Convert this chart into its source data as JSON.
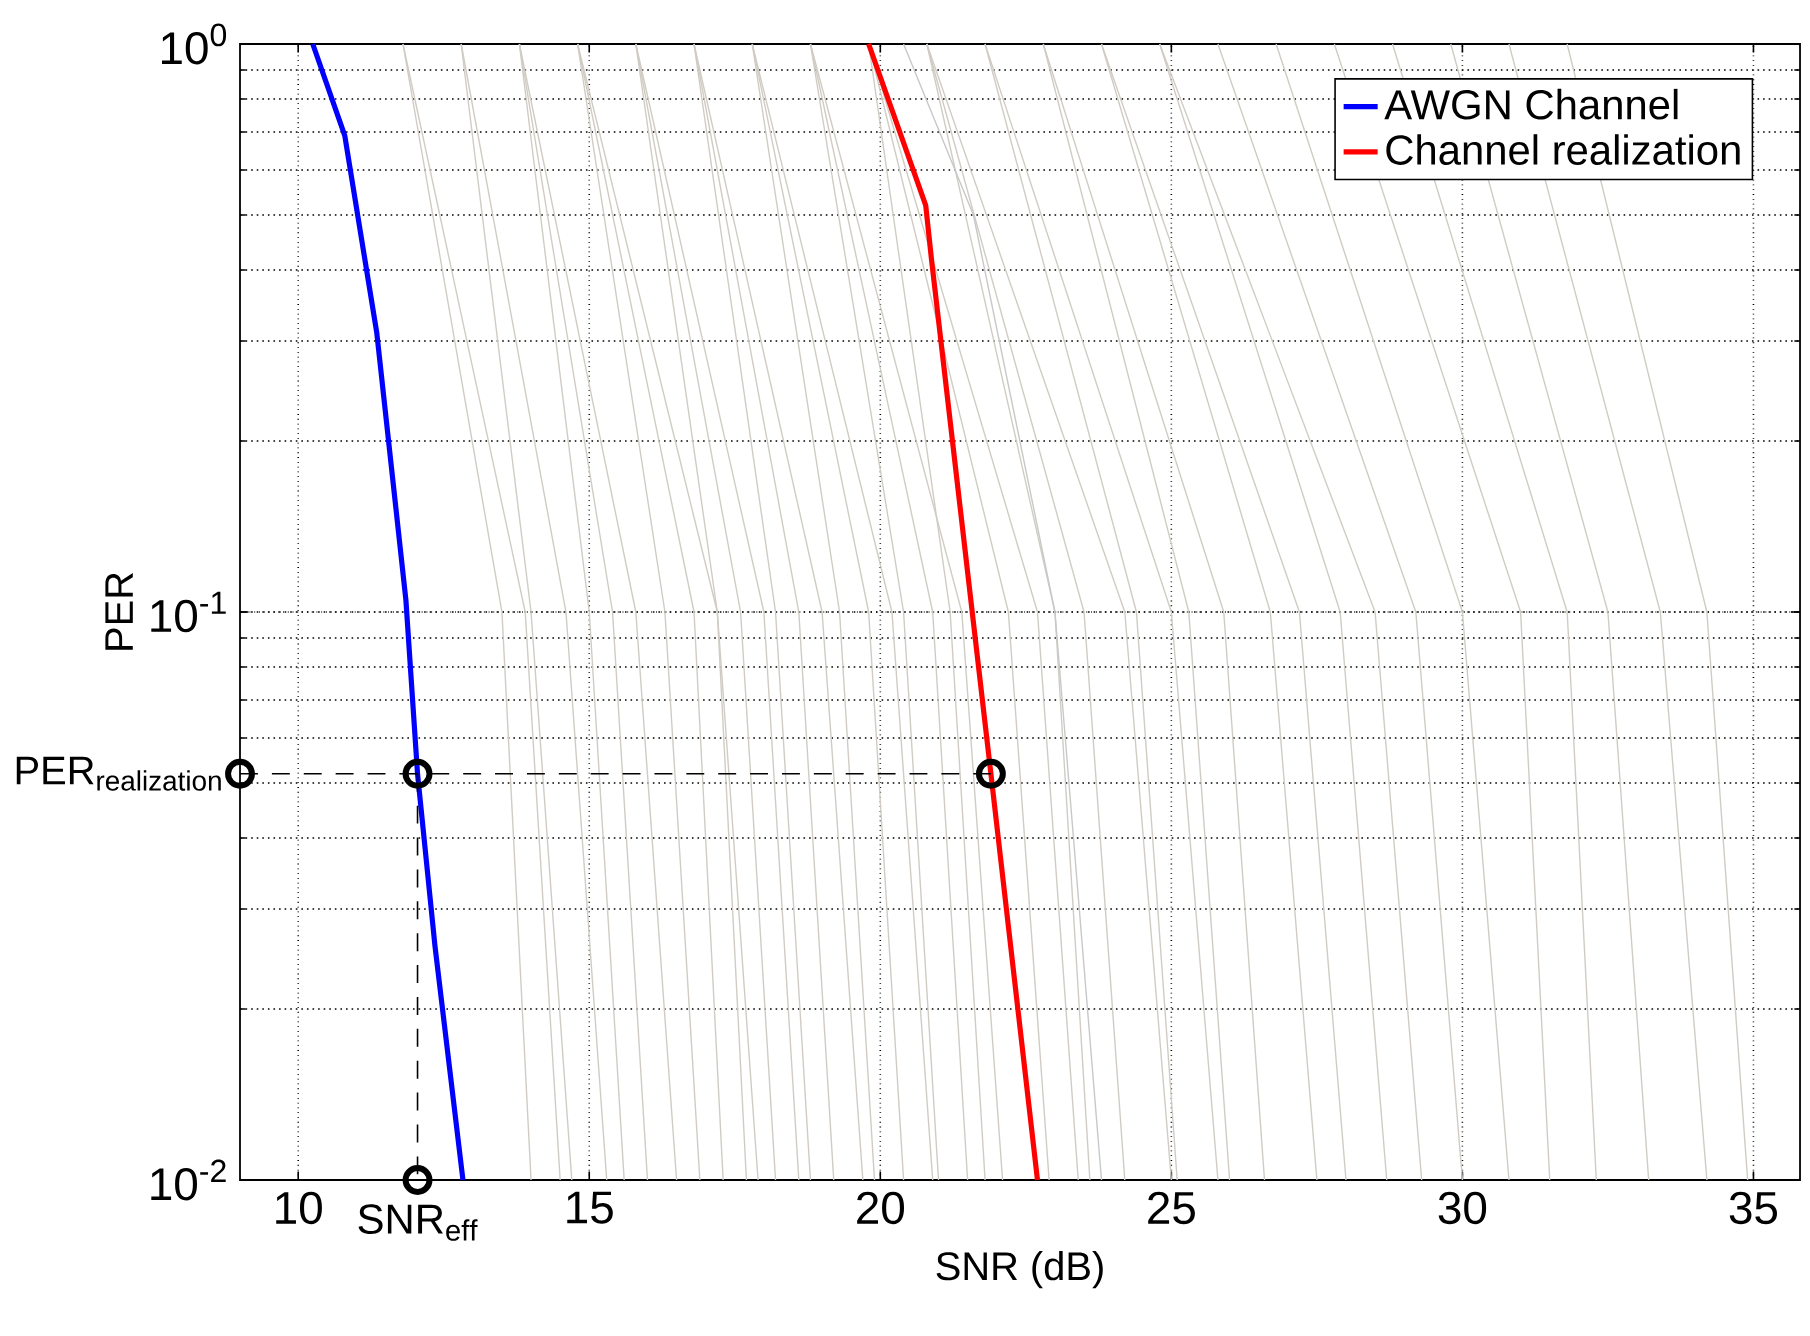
{
  "chart_data": {
    "type": "line",
    "xlabel": "SNR (dB)",
    "ylabel": "PER",
    "log": "y",
    "grid": true,
    "legend": "top right",
    "xlim": [
      9,
      35.8
    ],
    "ylim": [
      0.01,
      1
    ],
    "xticks": [
      10,
      15,
      20,
      25,
      30,
      35
    ],
    "yticks": [
      {
        "value": 0.01,
        "label": "10$^{-2}$"
      },
      {
        "value": 0.1,
        "label": "10$^{-1}$"
      },
      {
        "value": 1,
        "label": "10$^{0}$"
      }
    ],
    "series": [
      {
        "color": "#d0ccc4",
        "x": [
          11.8,
          13.5,
          14.0
        ],
        "values": [
          1,
          0.1,
          0.01
        ]
      },
      {
        "color": "#d0ccc4",
        "x": [
          11.8,
          13.9,
          14.5
        ],
        "values": [
          1,
          0.1,
          0.01
        ]
      },
      {
        "color": "#d0ccc4",
        "x": [
          12.8,
          14.0,
          14.7
        ],
        "values": [
          1,
          0.1,
          0.01
        ]
      },
      {
        "color": "#d0ccc4",
        "x": [
          12.8,
          14.6,
          15.3
        ],
        "values": [
          1,
          0.1,
          0.01
        ]
      },
      {
        "color": "#d0ccc4",
        "x": [
          13.8,
          15.0,
          15.6
        ],
        "values": [
          1,
          0.1,
          0.01
        ]
      },
      {
        "color": "#d0ccc4",
        "x": [
          13.8,
          15.4,
          16.0
        ],
        "values": [
          1,
          0.1,
          0.01
        ]
      },
      {
        "color": "#d0ccc4",
        "x": [
          13.8,
          15.8,
          16.5
        ],
        "values": [
          1,
          0.1,
          0.01
        ]
      },
      {
        "color": "#d0ccc4",
        "x": [
          14.8,
          16.3,
          16.9
        ],
        "values": [
          1,
          0.1,
          0.01
        ]
      },
      {
        "color": "#d0ccc4",
        "x": [
          14.8,
          16.8,
          17.3
        ],
        "values": [
          1,
          0.1,
          0.01
        ]
      },
      {
        "color": "#d0ccc4",
        "x": [
          14.8,
          17.2,
          17.9
        ],
        "values": [
          1,
          0.1,
          0.01
        ]
      },
      {
        "color": "#d0ccc4",
        "x": [
          15.8,
          17.2,
          17.7
        ],
        "values": [
          1,
          0.1,
          0.01
        ]
      },
      {
        "color": "#d0ccc4",
        "x": [
          15.8,
          17.6,
          18.2
        ],
        "values": [
          1,
          0.1,
          0.01
        ]
      },
      {
        "color": "#d0ccc4",
        "x": [
          15.8,
          18.0,
          18.6
        ],
        "values": [
          1,
          0.1,
          0.01
        ]
      },
      {
        "color": "#d0ccc4",
        "x": [
          16.8,
          18.2,
          18.8
        ],
        "values": [
          1,
          0.1,
          0.01
        ]
      },
      {
        "color": "#d0ccc4",
        "x": [
          16.8,
          18.6,
          19.2
        ],
        "values": [
          1,
          0.1,
          0.01
        ]
      },
      {
        "color": "#d0ccc4",
        "x": [
          16.8,
          19.0,
          19.7
        ],
        "values": [
          1,
          0.1,
          0.01
        ]
      },
      {
        "color": "#d0ccc4",
        "x": [
          17.8,
          19.3,
          19.9
        ],
        "values": [
          1,
          0.1,
          0.01
        ]
      },
      {
        "color": "#d0ccc4",
        "x": [
          17.8,
          19.8,
          20.4
        ],
        "values": [
          1,
          0.1,
          0.01
        ]
      },
      {
        "color": "#d0ccc4",
        "x": [
          17.8,
          20.2,
          20.9
        ],
        "values": [
          1,
          0.1,
          0.01
        ]
      },
      {
        "color": "#d0ccc4",
        "x": [
          18.8,
          20.4,
          21.0
        ],
        "values": [
          1,
          0.1,
          0.01
        ]
      },
      {
        "color": "#d0ccc4",
        "x": [
          18.8,
          20.9,
          21.5
        ],
        "values": [
          1,
          0.1,
          0.01
        ]
      },
      {
        "color": "#d0ccc4",
        "x": [
          18.8,
          21.4,
          22.1
        ],
        "values": [
          1,
          0.1,
          0.01
        ]
      },
      {
        "color": "#d0ccc4",
        "x": [
          19.8,
          21.2,
          21.8
        ],
        "values": [
          1,
          0.1,
          0.01
        ]
      },
      {
        "color": "#d0ccc4",
        "x": [
          19.8,
          22.2,
          22.9
        ],
        "values": [
          1,
          0.1,
          0.01
        ]
      },
      {
        "color": "#d0ccc4",
        "x": [
          19.8,
          22.7,
          23.4
        ],
        "values": [
          1,
          0.1,
          0.01
        ]
      },
      {
        "color": "#d0ccc4",
        "x": [
          20.8,
          23.0,
          23.6
        ],
        "values": [
          1,
          0.1,
          0.01
        ]
      },
      {
        "color": "#d0ccc4",
        "x": [
          20.8,
          23.5,
          24.2
        ],
        "values": [
          1,
          0.1,
          0.01
        ]
      },
      {
        "color": "#d0ccc4",
        "x": [
          20.8,
          24.2,
          25.0
        ],
        "values": [
          1,
          0.1,
          0.01
        ]
      },
      {
        "color": "#d0ccc4",
        "x": [
          21.8,
          24.4,
          25.1
        ],
        "values": [
          1,
          0.1,
          0.01
        ]
      },
      {
        "color": "#d0ccc4",
        "x": [
          21.8,
          25.0,
          25.8
        ],
        "values": [
          1,
          0.1,
          0.01
        ]
      },
      {
        "color": "#d0ccc4",
        "x": [
          22.8,
          25.3,
          26.0
        ],
        "values": [
          1,
          0.1,
          0.01
        ]
      },
      {
        "color": "#d0ccc4",
        "x": [
          22.8,
          25.9,
          26.6
        ],
        "values": [
          1,
          0.1,
          0.01
        ]
      },
      {
        "color": "#d0ccc4",
        "x": [
          23.8,
          26.7,
          27.5
        ],
        "values": [
          1,
          0.1,
          0.01
        ]
      },
      {
        "color": "#d0ccc4",
        "x": [
          23.8,
          27.2,
          28.0
        ],
        "values": [
          1,
          0.1,
          0.01
        ]
      },
      {
        "color": "#d0ccc4",
        "x": [
          24.8,
          27.9,
          28.7
        ],
        "values": [
          1,
          0.1,
          0.01
        ]
      },
      {
        "color": "#d0ccc4",
        "x": [
          24.8,
          28.5,
          29.3
        ],
        "values": [
          1,
          0.1,
          0.01
        ]
      },
      {
        "color": "#d0ccc4",
        "x": [
          25.8,
          29.2,
          30.0
        ],
        "values": [
          1,
          0.1,
          0.01
        ]
      },
      {
        "color": "#d0ccc4",
        "x": [
          26.8,
          30.0,
          30.8
        ],
        "values": [
          1,
          0.1,
          0.01
        ]
      },
      {
        "color": "#d0ccc4",
        "x": [
          27.8,
          31.0,
          31.5
        ],
        "values": [
          1,
          0.1,
          0.01
        ]
      },
      {
        "color": "#d0ccc4",
        "x": [
          28.8,
          31.8,
          32.3
        ],
        "values": [
          1,
          0.1,
          0.01
        ]
      },
      {
        "color": "#d0ccc4",
        "x": [
          29.8,
          32.5,
          33.2
        ],
        "values": [
          1,
          0.1,
          0.01
        ]
      },
      {
        "color": "#d0ccc4",
        "x": [
          30.8,
          33.4,
          34.2
        ],
        "values": [
          1,
          0.1,
          0.01
        ]
      },
      {
        "color": "#d0ccc4",
        "x": [
          31.8,
          34.2,
          34.9
        ],
        "values": [
          1,
          0.1,
          0.01
        ]
      },
      {
        "color": "#c8c8c8",
        "x": [
          20.4,
          21.6,
          23.0,
          23.8
        ],
        "values": [
          1,
          0.5,
          0.1,
          0.01
        ]
      },
      {
        "name": "AWGN Channel",
        "color": "#0000ff",
        "x": [
          10.25,
          10.8,
          11.35,
          11.85,
          12.05,
          12.35,
          12.83
        ],
        "values": [
          1,
          0.69,
          0.31,
          0.105,
          0.0519,
          0.0258,
          0.01
        ]
      },
      {
        "name": "Channel realization",
        "color": "#ff0000",
        "x": [
          19.8,
          20.78,
          20.88,
          21.9,
          22.7
        ],
        "values": [
          1,
          0.52,
          0.417,
          0.0519,
          0.01
        ]
      },
      {
        "color": "#000000",
        "line_style": "dashed",
        "x": [
          9,
          21.9
        ],
        "values": [
          0.0519,
          0.0519
        ]
      },
      {
        "color": "#000000",
        "line_style": "dashed",
        "x": [
          12.05,
          12.05
        ],
        "values": [
          0.0519,
          0.01
        ]
      },
      {
        "type": "scatter",
        "marker": "circle",
        "color": "#000000",
        "x": [
          9,
          12.05,
          21.9,
          12.05
        ],
        "values": [
          0.0519,
          0.0519,
          0.0519,
          0.01
        ]
      }
    ],
    "annotations": [
      {
        "text": "\\mathrm{PER}_{\\mathrm{realization}}",
        "x": 9,
        "y": 0.0519
      },
      {
        "text": "\\mathrm{SNR}_{\\mathrm{eff}}",
        "x": 12.05,
        "y": 0.01
      }
    ]
  }
}
